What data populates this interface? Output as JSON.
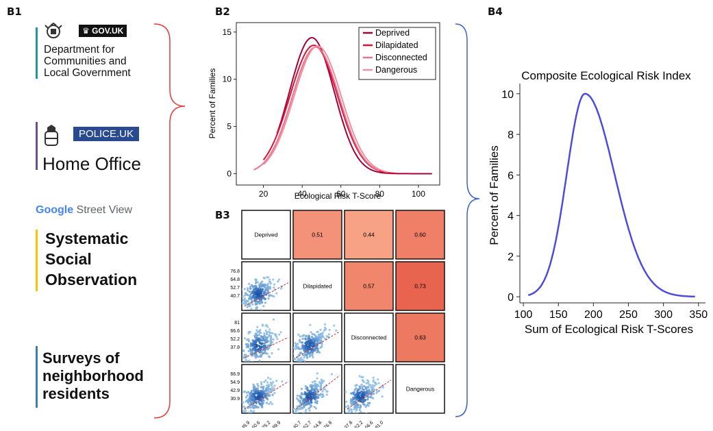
{
  "panels": {
    "b1": "B1",
    "b2": "B2",
    "b3": "B3",
    "b4": "B4"
  },
  "sources": {
    "gov_badge": "GOV.UK",
    "dclg_name": "Department for Communities and Local Government",
    "dclg_lines": [
      "Department for",
      "Communities and",
      "Local Government"
    ],
    "police_badge": "POLICE.UK",
    "home_office": "Home Office",
    "google_google": "Google",
    "google_sv": " Street View",
    "sso_lines": [
      "Systematic",
      "Social",
      "Observation"
    ],
    "survey_lines": [
      "Surveys of",
      "neighborhood",
      "residents"
    ]
  },
  "colors": {
    "deprived": "#a3003b",
    "dilapidated": "#dd1133",
    "disconnected": "#e8748e",
    "dangerous": "#f08fa0",
    "composite": "#4b4bdc",
    "bracket_red": "#e53935",
    "bracket_blue": "#3a5fcd",
    "bar_teal": "#1a9ba0",
    "bar_purple": "#6b4e8f",
    "bar_yellow": "#f4c400",
    "bar_blue": "#3c7fb8"
  },
  "chart_data": [
    {
      "id": "B2",
      "type": "line",
      "xlabel": "Ecological Risk T-Score",
      "ylabel": "Percent of Families",
      "xlim": [
        6,
        111
      ],
      "ylim": [
        -1.2,
        16
      ],
      "xticks": [
        20,
        40,
        60,
        80,
        100
      ],
      "yticks": [
        0,
        5,
        10,
        15
      ],
      "legend_position": "top-right",
      "series": [
        {
          "name": "Deprived",
          "mean": 45,
          "sd": 11.5,
          "peak": 14.4,
          "xrange": [
            27,
            107
          ]
        },
        {
          "name": "Dilapidated",
          "mean": 46,
          "sd": 12.3,
          "peak": 13.6,
          "xrange": [
            20,
            88
          ]
        },
        {
          "name": "Disconnected",
          "mean": 47,
          "sd": 12.1,
          "peak": 13.4,
          "xrange": [
            15,
            80
          ]
        },
        {
          "name": "Dangerous",
          "mean": 48,
          "sd": 12.2,
          "peak": 13.5,
          "xrange": [
            20,
            84
          ]
        }
      ]
    },
    {
      "id": "B3",
      "type": "heatmap",
      "variables": [
        "Deprived",
        "Dilapidated",
        "Disconnected",
        "Dangerous"
      ],
      "correlations": [
        {
          "row": 0,
          "col": 1,
          "value": "0.51"
        },
        {
          "row": 0,
          "col": 2,
          "value": "0.44"
        },
        {
          "row": 0,
          "col": 3,
          "value": "0.60"
        },
        {
          "row": 1,
          "col": 2,
          "value": "0.57"
        },
        {
          "row": 1,
          "col": 3,
          "value": "0.73"
        },
        {
          "row": 2,
          "col": 3,
          "value": "0.63"
        }
      ],
      "row_ticks": [
        [],
        [
          "76.8",
          "64.8",
          "52.7",
          "40.7"
        ],
        [
          "81",
          "66.6",
          "52.2",
          "37.8"
        ],
        [
          "66.9",
          "54.9",
          "42.9",
          "30.9"
        ]
      ],
      "col_ticks": [
        [
          "45.9",
          "60.6",
          "75.2",
          "89.9"
        ],
        [
          "40.7",
          "52.7",
          "64.8",
          "76.8"
        ],
        [
          "37.8",
          "52.2",
          "66.6",
          "81.0"
        ],
        []
      ]
    },
    {
      "id": "B4",
      "type": "line",
      "title": "Composite Ecological Risk Index",
      "xlabel": "Sum of Ecological Risk T-Scores",
      "ylabel": "Percent of Families",
      "xlim": [
        95,
        360
      ],
      "ylim": [
        -0.3,
        10.5
      ],
      "xticks": [
        100,
        150,
        200,
        250,
        300,
        350
      ],
      "yticks": [
        0,
        2,
        4,
        6,
        8,
        10
      ],
      "series": [
        {
          "name": "",
          "mode": 188,
          "sd_left": 26,
          "sd_right": 42,
          "peak": 10,
          "xrange": [
            107,
            345
          ]
        }
      ]
    }
  ]
}
